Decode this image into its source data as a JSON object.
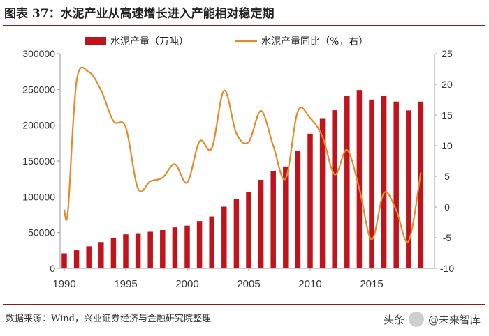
{
  "figure_title": "图表 37：水泥产业从高速增长进入产能相对稳定期",
  "source_note": "数据来源：Wind，兴业证券经济与金融研究院整理",
  "watermark": {
    "platform": "头条",
    "account": "@未来智库"
  },
  "chart_data": {
    "type": "bar",
    "legend_placement": "top",
    "series": [
      {
        "name": "水泥产量（万吨）",
        "type": "bar",
        "axis": "left",
        "color": "#c0141c",
        "x": [
          1990,
          1991,
          1992,
          1993,
          1994,
          1995,
          1996,
          1997,
          1998,
          1999,
          2000,
          2001,
          2002,
          2003,
          2004,
          2005,
          2006,
          2007,
          2008,
          2009,
          2010,
          2011,
          2012,
          2013,
          2014,
          2015,
          2016,
          2017,
          2018,
          2019
        ],
        "values": [
          20971,
          25261,
          30822,
          36788,
          42118,
          47561,
          49119,
          51174,
          53600,
          57300,
          59700,
          66104,
          72500,
          86208,
          96682,
          106885,
          123676,
          136117,
          142356,
          164398,
          188191,
          209926,
          220984,
          241440,
          249207,
          235919,
          241031,
          233084,
          220771,
          233036
        ]
      },
      {
        "name": "水泥产量同比（%，右）",
        "type": "line",
        "axis": "right",
        "color": "#e58a2b",
        "x": [
          1990,
          1990.3,
          1991,
          1992,
          1993,
          1994,
          1995,
          1996,
          1997,
          1998,
          1999,
          2000,
          2001,
          2002,
          2003,
          2004,
          2005,
          2006,
          2007,
          2008,
          2009,
          2010,
          2011,
          2012,
          2013,
          2014,
          2015,
          2016,
          2017,
          2018,
          2019
        ],
        "values": [
          -0.5,
          -0.6,
          20.5,
          22,
          19,
          14,
          13,
          3,
          4.2,
          4.8,
          7,
          4,
          10.7,
          9.6,
          19,
          12,
          10.6,
          15.7,
          10,
          4.6,
          15.6,
          14.5,
          11.5,
          5.3,
          9.3,
          3,
          -5.3,
          2.3,
          -0.5,
          -5.6,
          5.6
        ]
      }
    ],
    "x_ticks": [
      "1990",
      "1995",
      "2000",
      "2005",
      "2010",
      "2015"
    ],
    "x_range": [
      1990,
      2020
    ],
    "y_left": {
      "ticks": [
        "0",
        "50000",
        "100000",
        "150000",
        "200000",
        "250000",
        "300000"
      ],
      "range": [
        0,
        300000
      ]
    },
    "y_right": {
      "ticks": [
        "-10",
        "-5",
        "0",
        "5",
        "10",
        "15",
        "20",
        "25"
      ],
      "range": [
        -10,
        25
      ]
    },
    "grid": false
  }
}
